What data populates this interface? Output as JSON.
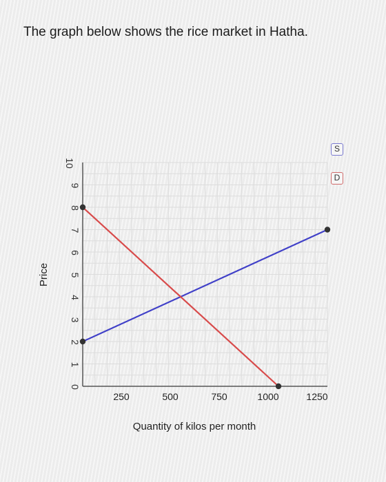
{
  "prompt": "The graph below shows the rice market in Hatha.",
  "chart_data": {
    "type": "line",
    "title": "",
    "xlabel": "Quantity of kilos per month",
    "ylabel": "Price",
    "xlim": [
      0,
      1250
    ],
    "ylim": [
      0,
      10
    ],
    "x_ticks": [
      "250",
      "500",
      "750",
      "1000",
      "1250"
    ],
    "y_ticks": [
      "0",
      "1",
      "2",
      "3",
      "4",
      "5",
      "6",
      "7",
      "8",
      "9",
      "10"
    ],
    "grid": true,
    "legend_position": "top-right",
    "series": [
      {
        "name": "S",
        "color": "#4040c8",
        "points": [
          [
            0,
            2
          ],
          [
            1250,
            7
          ]
        ]
      },
      {
        "name": "D",
        "color": "#d84a4a",
        "points": [
          [
            0,
            8
          ],
          [
            1000,
            0
          ]
        ]
      }
    ]
  },
  "legend": {
    "supply": "S",
    "demand": "D"
  }
}
